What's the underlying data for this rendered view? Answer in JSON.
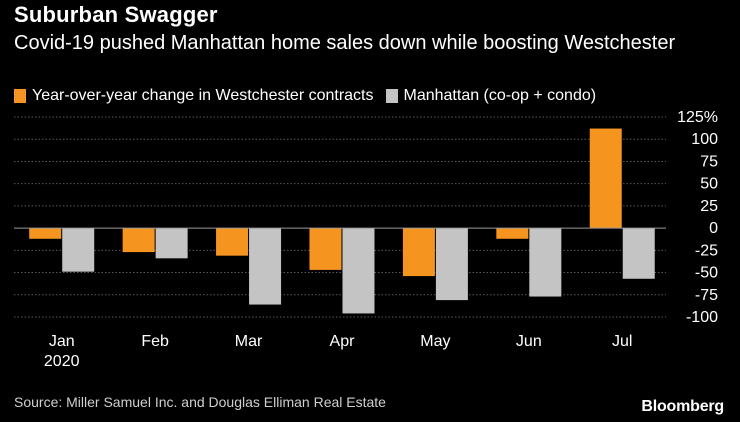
{
  "chart_data": {
    "type": "bar",
    "title": "Suburban Swagger",
    "subtitle": "Covid-19 pushed Manhattan home sales down while boosting Westchester",
    "categories": [
      "Jan",
      "Feb",
      "Mar",
      "Apr",
      "May",
      "Jun",
      "Jul"
    ],
    "category_sublabels": [
      "2020",
      "",
      "",
      "",
      "",
      "",
      ""
    ],
    "series": [
      {
        "name": "Year-over-year change in Westchester contracts",
        "color": "#f5951f",
        "values": [
          -12,
          -27,
          -31,
          -47,
          -54,
          -12,
          112
        ]
      },
      {
        "name": "Manhattan (co-op + condo)",
        "color": "#c4c4c4",
        "values": [
          -49,
          -34,
          -86,
          -96,
          -81,
          -77,
          -57
        ]
      }
    ],
    "ylim": [
      -100,
      125
    ],
    "yticks": [
      {
        "value": 125,
        "label": "125%"
      },
      {
        "value": 100,
        "label": "100"
      },
      {
        "value": 75,
        "label": "75"
      },
      {
        "value": 50,
        "label": "50"
      },
      {
        "value": 25,
        "label": "25"
      },
      {
        "value": 0,
        "label": "0"
      },
      {
        "value": -25,
        "label": "-25"
      },
      {
        "value": -50,
        "label": "-50"
      },
      {
        "value": -75,
        "label": "-75"
      },
      {
        "value": -100,
        "label": "-100"
      }
    ],
    "grid": true,
    "legend_position": "top-left"
  },
  "source": "Source: Miller Samuel Inc. and Douglas Elliman Real Estate",
  "brand": "Bloomberg"
}
